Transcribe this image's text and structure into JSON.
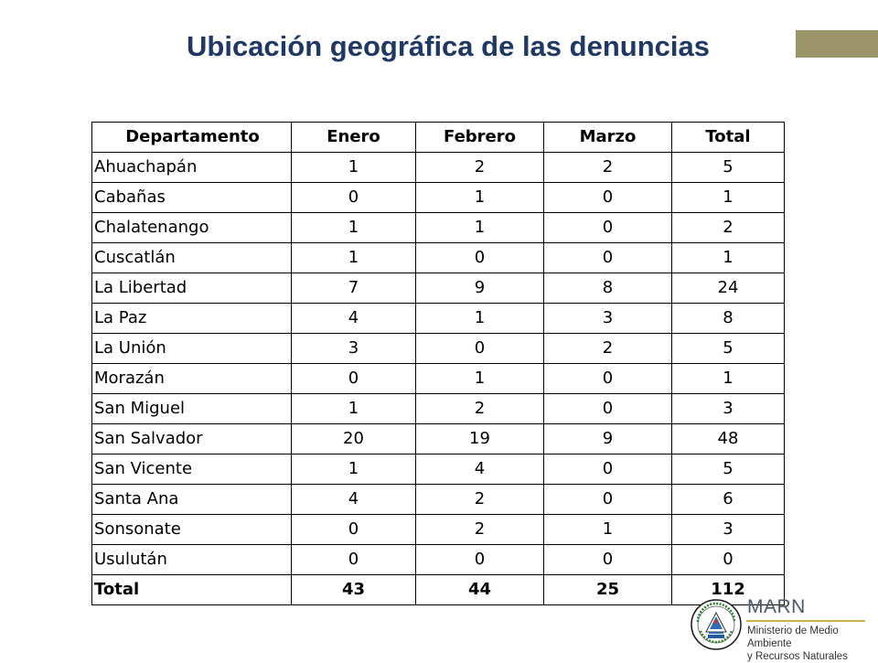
{
  "title": "Ubicación geográfica de las denuncias",
  "colors": {
    "title": "#1f3864",
    "accent_bar": "#9b9468"
  },
  "table": {
    "headers": [
      "Departamento",
      "Enero",
      "Febrero",
      "Marzo",
      "Total"
    ],
    "rows": [
      [
        "Ahuachapán",
        "1",
        "2",
        "2",
        "5"
      ],
      [
        "Cabañas",
        "0",
        "1",
        "0",
        "1"
      ],
      [
        "Chalatenango",
        "1",
        "1",
        "0",
        "2"
      ],
      [
        "Cuscatlán",
        "1",
        "0",
        "0",
        "1"
      ],
      [
        "La Libertad",
        "7",
        "9",
        "8",
        "24"
      ],
      [
        "La Paz",
        "4",
        "1",
        "3",
        "8"
      ],
      [
        "La Unión",
        "3",
        "0",
        "2",
        "5"
      ],
      [
        "Morazán",
        "0",
        "1",
        "0",
        "1"
      ],
      [
        "San Miguel",
        "1",
        "2",
        "0",
        "3"
      ],
      [
        "San Salvador",
        "20",
        "19",
        "9",
        "48"
      ],
      [
        "San Vicente",
        "1",
        "4",
        "0",
        "5"
      ],
      [
        "Santa Ana",
        "4",
        "2",
        "0",
        "6"
      ],
      [
        "Sonsonate",
        "0",
        "2",
        "1",
        "3"
      ],
      [
        "Usulután",
        "0",
        "0",
        "0",
        "0"
      ]
    ],
    "total_row": [
      "Total",
      "43",
      "44",
      "25",
      "112"
    ]
  },
  "logo": {
    "acronym": "MARN",
    "line1": "Ministerio de Medio Ambiente",
    "line2": "y Recursos Naturales",
    "seal_icon": "el-salvador-coat-of-arms-seal-icon"
  }
}
